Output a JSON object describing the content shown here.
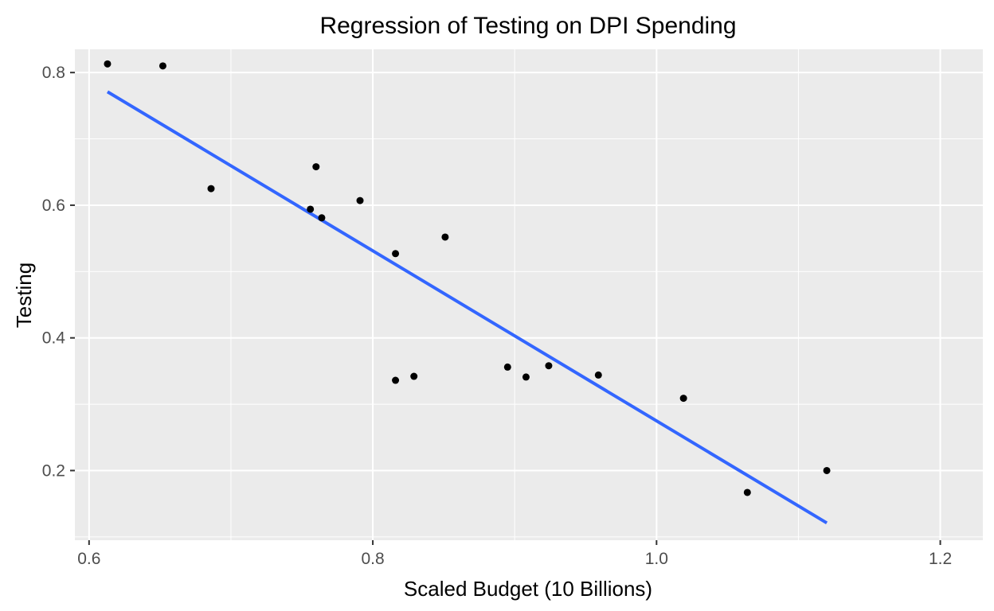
{
  "chart_data": {
    "type": "scatter",
    "title": "Regression of Testing on DPI Spending",
    "xlabel": "Scaled Budget (10 Billions)",
    "ylabel": "Testing",
    "xlim": [
      0.59,
      1.23
    ],
    "ylim": [
      0.095,
      0.835
    ],
    "xticks": [
      0.6,
      0.8,
      1.0,
      1.2
    ],
    "xtick_labels": [
      "0.6",
      "0.8",
      "1.0",
      "1.2"
    ],
    "yticks": [
      0.2,
      0.4,
      0.6,
      0.8
    ],
    "ytick_labels": [
      "0.2",
      "0.4",
      "0.6",
      "0.8"
    ],
    "grid": true,
    "background": "#ebebeb",
    "point_color": "#000000",
    "line_color": "#3366ff",
    "points": [
      {
        "x": 0.613,
        "y": 0.813
      },
      {
        "x": 0.652,
        "y": 0.81
      },
      {
        "x": 0.686,
        "y": 0.625
      },
      {
        "x": 0.756,
        "y": 0.594
      },
      {
        "x": 0.76,
        "y": 0.658
      },
      {
        "x": 0.764,
        "y": 0.581
      },
      {
        "x": 0.791,
        "y": 0.607
      },
      {
        "x": 0.816,
        "y": 0.527
      },
      {
        "x": 0.816,
        "y": 0.336
      },
      {
        "x": 0.829,
        "y": 0.342
      },
      {
        "x": 0.851,
        "y": 0.552
      },
      {
        "x": 0.895,
        "y": 0.356
      },
      {
        "x": 0.908,
        "y": 0.341
      },
      {
        "x": 0.924,
        "y": 0.358
      },
      {
        "x": 0.959,
        "y": 0.344
      },
      {
        "x": 1.019,
        "y": 0.309
      },
      {
        "x": 1.064,
        "y": 0.167
      },
      {
        "x": 1.12,
        "y": 0.2
      }
    ],
    "regression_line": {
      "x": [
        0.613,
        1.12
      ],
      "y": [
        0.771,
        0.121
      ]
    }
  }
}
